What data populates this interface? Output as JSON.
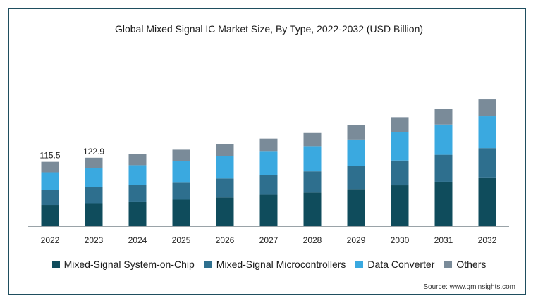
{
  "chart_data": {
    "type": "bar",
    "stacked": true,
    "title": "Global Mixed Signal IC Market Size, By Type, 2022-2032 (USD Billion)",
    "xlabel": "",
    "ylabel": "",
    "ylim": [
      0,
      330
    ],
    "grid": false,
    "legend_position": "bottom",
    "categories": [
      "2022",
      "2023",
      "2024",
      "2025",
      "2026",
      "2027",
      "2028",
      "2029",
      "2030",
      "2031",
      "2032"
    ],
    "series": [
      {
        "name": "Mixed-Signal System-on-Chip",
        "color": "#0f4c5c",
        "values": [
          37.9,
          41.1,
          44.3,
          47.4,
          51.4,
          56.2,
          60.2,
          66.6,
          73.3,
          79.7,
          87.4
        ]
      },
      {
        "name": "Mixed-Signal Microcontrollers",
        "color": "#2e6f8e",
        "values": [
          27.0,
          28.6,
          29.4,
          31.8,
          34.2,
          35.8,
          38.2,
          41.4,
          44.6,
          48.5,
          52.7
        ]
      },
      {
        "name": "Data Converter",
        "color": "#3aa9e0",
        "values": [
          31.8,
          34.1,
          35.8,
          37.4,
          40.2,
          42.9,
          45.3,
          47.7,
          50.9,
          54.2,
          57.1
        ]
      },
      {
        "name": "Others",
        "color": "#7a8b99",
        "values": [
          18.8,
          19.1,
          19.9,
          20.7,
          21.5,
          22.3,
          23.5,
          25.1,
          26.7,
          28.3,
          30.3
        ]
      }
    ],
    "data_labels": [
      {
        "category": "2022",
        "text": "115.5"
      },
      {
        "category": "2023",
        "text": "122.9"
      }
    ]
  },
  "source": "Source: www.gminsights.com"
}
